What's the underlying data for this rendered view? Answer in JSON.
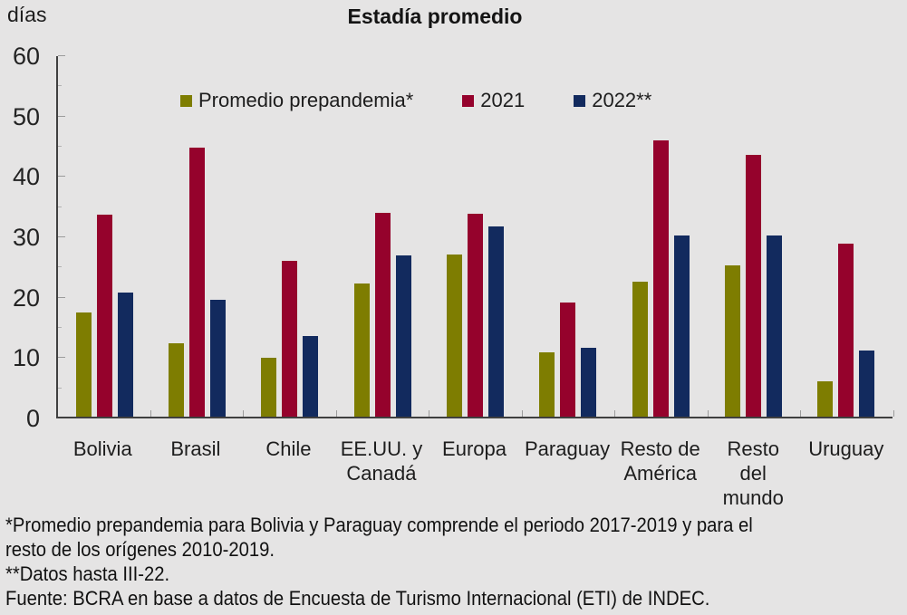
{
  "title": "Estadía promedio",
  "y_axis": {
    "unit_label": "días",
    "major_ticks": [
      0,
      10,
      20,
      30,
      40,
      50,
      60
    ],
    "minor_ticks": [
      5,
      15,
      25,
      35,
      45,
      55
    ]
  },
  "chart_data": {
    "type": "bar",
    "title": "Estadía promedio",
    "xlabel": "",
    "ylabel": "días",
    "ylim": [
      0,
      60
    ],
    "grid": false,
    "legend_position": "top-inside",
    "categories": [
      "Bolivia",
      "Brasil",
      "Chile",
      "EE.UU. y\nCanadá",
      "Europa",
      "Paraguay",
      "Resto de\nAmérica",
      "Resto\ndel\nmundo",
      "Uruguay"
    ],
    "series": [
      {
        "name": "Promedio prepandemia*",
        "color": "#7e7d01",
        "values": [
          17.3,
          12.1,
          9.7,
          22.1,
          26.8,
          10.6,
          22.4,
          25.1,
          5.9
        ]
      },
      {
        "name": "2021",
        "color": "#95022c",
        "values": [
          33.4,
          44.5,
          25.8,
          33.8,
          33.6,
          18.9,
          45.7,
          43.3,
          28.7
        ]
      },
      {
        "name": "2022**",
        "color": "#122a5e",
        "values": [
          20.5,
          19.4,
          13.4,
          26.7,
          31.5,
          11.4,
          30.0,
          30.0,
          11.0
        ]
      }
    ]
  },
  "footnotes": [
    "*Promedio prepandemia para Bolivia y Paraguay comprende el periodo 2017-2019 y para el",
    "resto de los orígenes 2010-2019.",
    "**Datos hasta III-22.",
    "Fuente: BCRA en base a datos de Encuesta de Turismo Internacional (ETI) de INDEC."
  ],
  "colors": {
    "background": "#e5e4e4",
    "axis": "#3f3f3f",
    "major_tick": "#9b9b9b",
    "minor_tick": "#b2b2b2",
    "text": "#1d1d1d"
  }
}
